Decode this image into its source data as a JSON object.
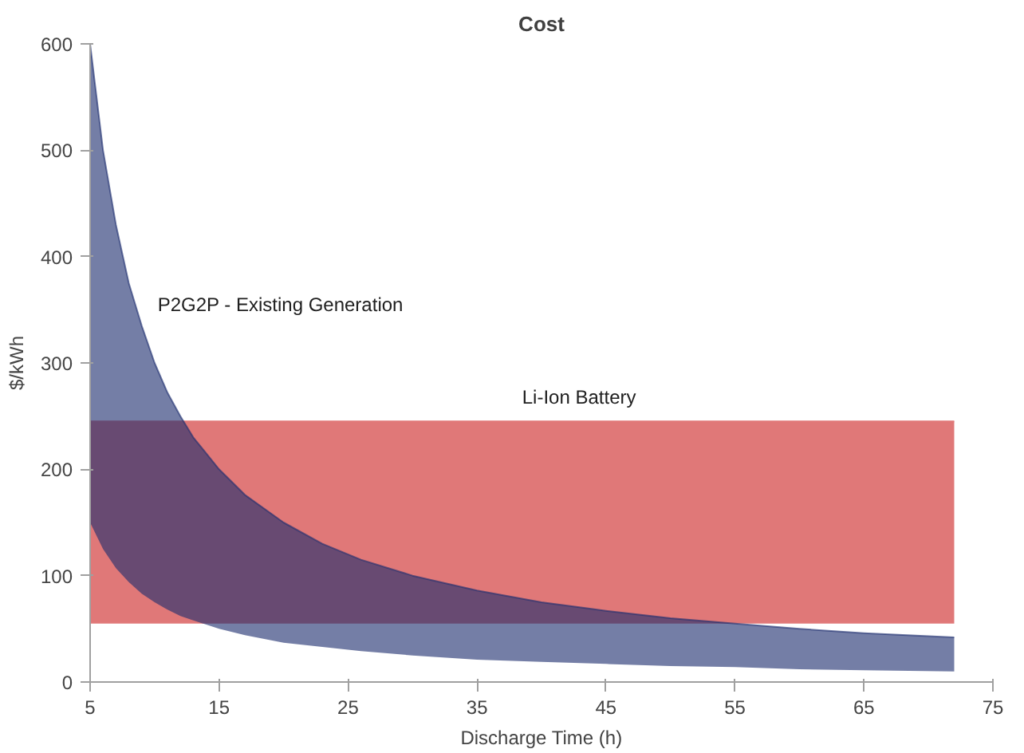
{
  "chart_data": {
    "type": "line",
    "title": "Cost",
    "xlabel": "Discharge Time (h)",
    "ylabel": "$/kWh",
    "xlim": [
      5,
      75
    ],
    "xticks": [
      5,
      15,
      25,
      35,
      45,
      55,
      65,
      75
    ],
    "ylim": [
      0,
      600
    ],
    "yticks": [
      0,
      100,
      200,
      300,
      400,
      500,
      600
    ],
    "series": [
      {
        "name": "Li-Ion Battery",
        "color": "#e07878",
        "x": [
          5,
          72
        ],
        "values": [
          245,
          245
        ],
        "upper": [
          245,
          245
        ],
        "lower": [
          55,
          55
        ]
      },
      {
        "name": "P2G2P - Existing Generation",
        "color": "#1f2f70",
        "x": [
          5,
          6,
          7,
          8,
          9,
          10,
          11,
          12,
          13,
          15,
          17,
          20,
          23,
          26,
          30,
          35,
          40,
          45,
          50,
          55,
          60,
          65,
          72
        ],
        "values": [
          600,
          500,
          430,
          375,
          335,
          300,
          272,
          250,
          230,
          200,
          176,
          150,
          130,
          115,
          100,
          86,
          75,
          67,
          60,
          55,
          50,
          46,
          42
        ],
        "upper": [
          600,
          500,
          430,
          375,
          335,
          300,
          272,
          250,
          230,
          200,
          176,
          150,
          130,
          115,
          100,
          86,
          75,
          67,
          60,
          55,
          50,
          46,
          42
        ],
        "lower": [
          150,
          125,
          107,
          94,
          83,
          75,
          68,
          62,
          58,
          50,
          44,
          37,
          33,
          29,
          25,
          21,
          19,
          17,
          15,
          14,
          12,
          11,
          10
        ]
      }
    ]
  }
}
